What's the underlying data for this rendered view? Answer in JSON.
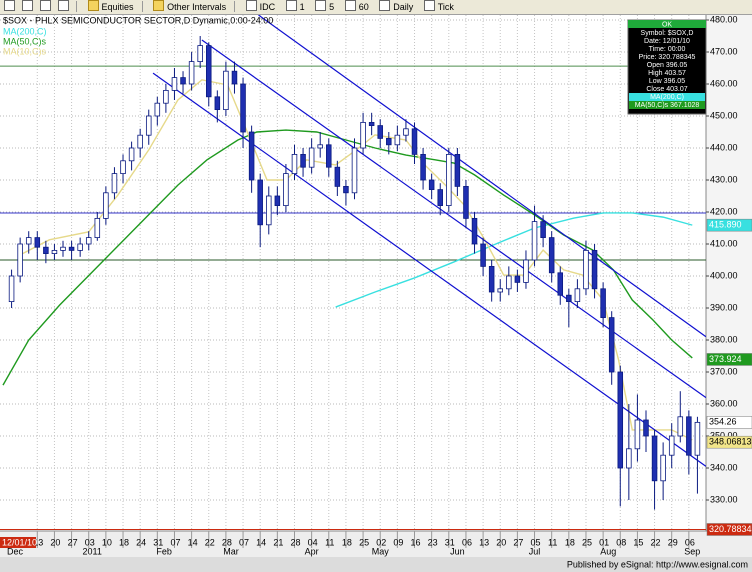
{
  "toolbar": {
    "buttons": [
      "Equities",
      "Other Intervals",
      "IDC",
      "1",
      "5",
      "60",
      "Daily",
      "Tick"
    ]
  },
  "chart_data": {
    "type": "candlestick",
    "title": "$SOX - PHLX SEMICONDUCTOR SECTOR,D  Dynamic,0:00-24:00",
    "up_color": "#ffffff",
    "down_color": "#1f2fb0",
    "outline_color": "#0a1a80",
    "x": [
      -1.5,
      -1,
      -0.5,
      0,
      0.5,
      1,
      1.5,
      2,
      2.5,
      3,
      3.5,
      4,
      4.5,
      5,
      5.5,
      6,
      6.5,
      7,
      7.5,
      8,
      8.5,
      9,
      9.5,
      10,
      10.5,
      11,
      11.5,
      12,
      12.5,
      13,
      13.5,
      14,
      14.5,
      15,
      15.5,
      16,
      16.5,
      17,
      17.5,
      18,
      18.5,
      19,
      19.5,
      20,
      20.5,
      21,
      21.5,
      22,
      22.5,
      23,
      23.5,
      24,
      24.5,
      25,
      25.5,
      26,
      26.5,
      27,
      27.5,
      28,
      28.5,
      29,
      29.5,
      30,
      30.5,
      31,
      31.5,
      32,
      32.5,
      33,
      33.5,
      34,
      34.5,
      35,
      35.5,
      36,
      36.5,
      37,
      37.5,
      38,
      38.5
    ],
    "ohlc": [
      [
        392,
        402,
        390,
        400
      ],
      [
        400,
        412,
        398,
        410
      ],
      [
        410,
        414,
        407,
        412
      ],
      [
        412,
        414,
        405,
        409
      ],
      [
        409,
        411,
        404,
        407
      ],
      [
        407,
        410,
        405,
        408
      ],
      [
        408,
        411,
        406,
        409
      ],
      [
        409,
        411,
        405,
        408
      ],
      [
        408,
        412,
        406,
        410
      ],
      [
        410,
        414,
        408,
        412
      ],
      [
        412,
        420,
        411,
        418
      ],
      [
        418,
        428,
        416,
        426
      ],
      [
        426,
        434,
        424,
        432
      ],
      [
        432,
        438,
        429,
        436
      ],
      [
        436,
        442,
        433,
        440
      ],
      [
        440,
        446,
        437,
        444
      ],
      [
        444,
        452,
        441,
        450
      ],
      [
        450,
        456,
        447,
        454
      ],
      [
        454,
        460,
        451,
        458
      ],
      [
        458,
        465,
        455,
        462
      ],
      [
        462,
        464,
        457,
        460
      ],
      [
        460,
        470,
        458,
        467
      ],
      [
        467,
        475,
        465,
        472
      ],
      [
        472,
        473,
        453,
        456
      ],
      [
        456,
        458,
        448,
        452
      ],
      [
        452,
        467,
        450,
        464
      ],
      [
        464,
        467,
        457,
        460
      ],
      [
        460,
        462,
        440,
        445
      ],
      [
        445,
        447,
        426,
        430
      ],
      [
        430,
        432,
        409,
        416
      ],
      [
        416,
        428,
        413,
        425
      ],
      [
        425,
        428,
        419,
        422
      ],
      [
        422,
        435,
        420,
        432
      ],
      [
        432,
        441,
        430,
        438
      ],
      [
        438,
        440,
        431,
        434
      ],
      [
        434,
        443,
        432,
        440
      ],
      [
        440,
        445,
        437,
        441
      ],
      [
        441,
        443,
        431,
        434
      ],
      [
        434,
        436,
        425,
        428
      ],
      [
        428,
        430,
        422,
        426
      ],
      [
        426,
        443,
        424,
        440
      ],
      [
        440,
        451,
        438,
        448
      ],
      [
        448,
        451,
        444,
        447
      ],
      [
        447,
        449,
        440,
        443
      ],
      [
        443,
        445,
        438,
        441
      ],
      [
        441,
        447,
        439,
        444
      ],
      [
        444,
        449,
        442,
        446
      ],
      [
        446,
        448,
        435,
        438
      ],
      [
        438,
        440,
        427,
        430
      ],
      [
        430,
        432,
        424,
        427
      ],
      [
        427,
        429,
        419,
        422
      ],
      [
        422,
        440,
        420,
        438
      ],
      [
        438,
        440,
        425,
        428
      ],
      [
        428,
        430,
        415,
        418
      ],
      [
        418,
        420,
        407,
        410
      ],
      [
        410,
        412,
        400,
        403
      ],
      [
        403,
        405,
        392,
        395
      ],
      [
        395,
        399,
        392,
        396
      ],
      [
        396,
        403,
        394,
        400
      ],
      [
        400,
        402,
        395,
        398
      ],
      [
        398,
        408,
        396,
        405
      ],
      [
        405,
        422,
        403,
        417
      ],
      [
        417,
        419,
        409,
        412
      ],
      [
        412,
        414,
        398,
        401
      ],
      [
        401,
        403,
        391,
        394
      ],
      [
        394,
        396,
        384,
        392
      ],
      [
        392,
        399,
        390,
        396
      ],
      [
        396,
        411,
        394,
        408
      ],
      [
        408,
        410,
        393,
        396
      ],
      [
        396,
        398,
        384,
        387
      ],
      [
        387,
        389,
        366,
        370
      ],
      [
        370,
        372,
        328,
        340
      ],
      [
        340,
        360,
        330,
        346
      ],
      [
        346,
        363,
        342,
        355
      ],
      [
        355,
        358,
        345,
        350
      ],
      [
        350,
        352,
        327,
        336
      ],
      [
        336,
        348,
        330,
        344
      ],
      [
        344,
        354,
        340,
        350
      ],
      [
        350,
        364,
        348,
        356
      ],
      [
        356,
        358,
        338,
        344
      ],
      [
        344,
        356,
        332,
        354.26
      ]
    ],
    "xlim": [
      -2,
      39
    ],
    "ylim": [
      320.625,
      481.5625
    ],
    "yticks": [
      {
        "value": 480,
        "label": "480.00"
      },
      {
        "value": 470,
        "label": "470.00"
      },
      {
        "value": 460,
        "label": "460.00"
      },
      {
        "value": 450,
        "label": "450.00"
      },
      {
        "value": 440,
        "label": "440.00"
      },
      {
        "value": 430,
        "label": "430.00"
      },
      {
        "value": 420,
        "label": "420.00"
      },
      {
        "value": 410,
        "label": "410.00"
      },
      {
        "value": 400,
        "label": "400.00"
      },
      {
        "value": 390,
        "label": "390.00"
      },
      {
        "value": 380,
        "label": "380.00"
      },
      {
        "value": 370,
        "label": "370.00"
      },
      {
        "value": 360,
        "label": "360.00"
      },
      {
        "value": 350,
        "label": "350.00"
      },
      {
        "value": 340,
        "label": "340.00"
      },
      {
        "value": 330,
        "label": "330.00"
      }
    ],
    "xticks": [
      {
        "value": 0,
        "label": "13"
      },
      {
        "value": 1,
        "label": "20"
      },
      {
        "value": 2,
        "label": "27"
      },
      {
        "value": 3,
        "label": "03"
      },
      {
        "value": 4,
        "label": "10"
      },
      {
        "value": 5,
        "label": "18"
      },
      {
        "value": 6,
        "label": "24"
      },
      {
        "value": 7,
        "label": "31"
      },
      {
        "value": 8,
        "label": "07"
      },
      {
        "value": 9,
        "label": "14"
      },
      {
        "value": 10,
        "label": "22"
      },
      {
        "value": 11,
        "label": "28"
      },
      {
        "value": 12,
        "label": "07"
      },
      {
        "value": 13,
        "label": "14"
      },
      {
        "value": 14,
        "label": "21"
      },
      {
        "value": 15,
        "label": "28"
      },
      {
        "value": 16,
        "label": "04"
      },
      {
        "value": 17,
        "label": "11"
      },
      {
        "value": 18,
        "label": "18"
      },
      {
        "value": 19,
        "label": "25"
      },
      {
        "value": 20,
        "label": "02"
      },
      {
        "value": 21,
        "label": "09"
      },
      {
        "value": 22,
        "label": "16"
      },
      {
        "value": 23,
        "label": "23"
      },
      {
        "value": 24,
        "label": "31"
      },
      {
        "value": 25,
        "label": "06"
      },
      {
        "value": 26,
        "label": "13"
      },
      {
        "value": 27,
        "label": "20"
      },
      {
        "value": 28,
        "label": "27"
      },
      {
        "value": 29,
        "label": "05"
      },
      {
        "value": 30,
        "label": "11"
      },
      {
        "value": 31,
        "label": "18"
      },
      {
        "value": 32,
        "label": "25"
      },
      {
        "value": 33,
        "label": "01"
      },
      {
        "value": 34,
        "label": "08"
      },
      {
        "value": 35,
        "label": "15"
      },
      {
        "value": 36,
        "label": "22"
      },
      {
        "value": 37,
        "label": "29"
      },
      {
        "value": 38,
        "label": "06"
      }
    ],
    "xticks_major": [
      {
        "value": -1.3,
        "label": "Dec"
      },
      {
        "value": 3.2,
        "label": "2011"
      },
      {
        "value": 7.4,
        "label": "Feb"
      },
      {
        "value": 11.3,
        "label": "Mar"
      },
      {
        "value": 16,
        "label": "Apr"
      },
      {
        "value": 20,
        "label": "May"
      },
      {
        "value": 24.5,
        "label": "Jun"
      },
      {
        "value": 29,
        "label": "Jul"
      },
      {
        "value": 33.3,
        "label": "Aug"
      },
      {
        "value": 38.2,
        "label": "Sep"
      }
    ],
    "grid": true,
    "lines": [
      {
        "name": "MA(200,C)",
        "color": "#38e0e0",
        "x": [
          17.4,
          19.7,
          22.0,
          24.3,
          26.6,
          29.0,
          31.3,
          33.0,
          34.7,
          36.5,
          38.2
        ],
        "values": [
          390.3,
          395,
          399.4,
          404.4,
          409.7,
          415,
          418.1,
          419.7,
          419.7,
          418.4,
          415.9
        ]
      },
      {
        "name": "MA(50,C)s",
        "color": "#1f9a1f",
        "x": [
          -2,
          -0.5,
          1.3,
          3.6,
          5.9,
          8.2,
          9.9,
          11.7,
          12.8,
          14.5,
          16.3,
          18,
          19.7,
          21.5,
          23.2,
          24.3,
          25.5,
          27.2,
          29,
          30.7,
          32.4,
          33.6,
          34.7,
          35.9,
          37,
          38.2
        ],
        "values": [
          365.9,
          380,
          390.9,
          403.4,
          415.9,
          428.4,
          436.3,
          442.5,
          445,
          445.6,
          445,
          442.5,
          440,
          437.8,
          436.3,
          435.3,
          431.6,
          425.3,
          419.1,
          412.8,
          408.1,
          401.9,
          392.5,
          386.3,
          380,
          374.4
        ]
      },
      {
        "name": "MA(10,C)s",
        "color": "#e6d98a",
        "x": [
          -1,
          0.7,
          3,
          4.7,
          6.5,
          8.2,
          9.6,
          11.1,
          12.2,
          13.4,
          14.5,
          15.7,
          17.4,
          18.6,
          19.7,
          21.5,
          22.6,
          23.8,
          24.9,
          26.1,
          27.2,
          28.4,
          29.5,
          30.7,
          31.8,
          33,
          33.9,
          34.7,
          35.9,
          37,
          38.2
        ],
        "values": [
          406.6,
          411.3,
          413.8,
          425.3,
          439.4,
          455,
          461.3,
          459.7,
          445.6,
          430,
          430,
          436.3,
          434.7,
          439.4,
          444.1,
          442.5,
          434.7,
          428.4,
          422.2,
          411.3,
          400.3,
          400.3,
          408.1,
          401.9,
          400.3,
          392.5,
          373.8,
          351.9,
          351.9,
          351.9,
          348.8
        ]
      }
    ],
    "trendlines": [
      {
        "color": "#1010d0",
        "x": [
          12.9,
          39
        ],
        "values": [
          481.56,
          381
        ]
      },
      {
        "color": "#1010d0",
        "x": [
          9.6,
          39
        ],
        "values": [
          473.75,
          362
        ]
      },
      {
        "color": "#1010d0",
        "x": [
          6.75,
          39
        ],
        "values": [
          463.4,
          340.5
        ]
      }
    ],
    "hlines": [
      {
        "color": "#3434c8",
        "value": 419.7
      },
      {
        "color": "#2a5a2a",
        "value": 405
      },
      {
        "color": "#4e8e4e",
        "value": 465.6
      }
    ],
    "price_tags": [
      {
        "value": 415.89,
        "label": "415.890",
        "color": "#38e0e0",
        "text_color": "#ffffff"
      },
      {
        "value": 373.924,
        "label": "373.924",
        "color": "#1f9a1f",
        "text_color": "#ffffff"
      },
      {
        "value": 354.26,
        "label": "354.26",
        "color": "#ffffff",
        "text_color": "#000000"
      },
      {
        "value": 348.06813,
        "label": "348.06813",
        "color": "#f2e58a",
        "text_color": "#000000"
      },
      {
        "value": 320.788345,
        "label": "320.788345",
        "color": "#cc2a10",
        "text_color": "#ffffff",
        "line": true
      }
    ],
    "cursor_date": "12/01/10"
  },
  "data_window": {
    "header": "OK",
    "rows": [
      {
        "text": "Symbol: $SOX,D"
      },
      {
        "text": "Date: 12/01/10"
      },
      {
        "text": "Time: 00:00"
      },
      {
        "text": "Price: 320.788345"
      },
      {
        "text": "Open 396.05"
      },
      {
        "text": "High 403.57"
      },
      {
        "text": "Low 396.05"
      },
      {
        "text": "Close 403.07"
      },
      {
        "text": "MA(200,C)",
        "color": "#38e0e0"
      },
      {
        "text": "MA(50,C)s 367.1028",
        "color": "#1f9a1f"
      }
    ]
  },
  "footer": "Published by eSignal: http://www.esignal.com"
}
